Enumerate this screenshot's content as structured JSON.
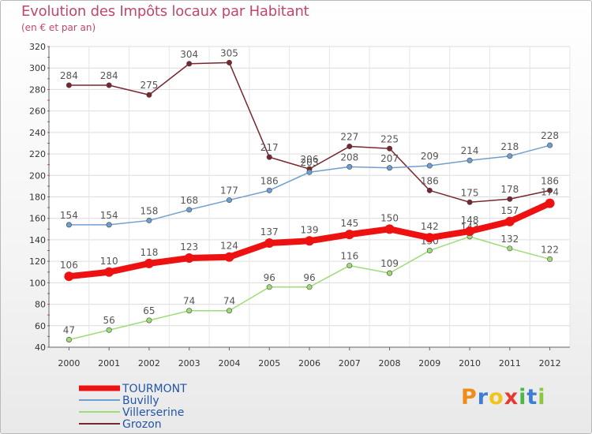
{
  "title": "Evolution des Impôts locaux par Habitant",
  "subtitle": "(en € et par an)",
  "brand": "Proxiti",
  "chart_data": {
    "type": "line",
    "title": "Evolution des Impôts locaux par Habitant",
    "subtitle": "(en € et par an)",
    "xlabel": "",
    "ylabel": "",
    "x": [
      "2000",
      "2001",
      "2002",
      "2003",
      "2004",
      "2005",
      "2006",
      "2007",
      "2008",
      "2009",
      "2010",
      "2011",
      "2012"
    ],
    "ylim": [
      40,
      320
    ],
    "yticks": [
      40,
      60,
      80,
      100,
      120,
      140,
      160,
      180,
      200,
      220,
      240,
      260,
      280,
      300,
      320
    ],
    "grid": true,
    "legend_position": "bottom-left",
    "series": [
      {
        "name": "Grozon",
        "color": "#7a2630",
        "values": [
          284,
          284,
          275,
          304,
          305,
          217,
          206,
          227,
          225,
          186,
          175,
          178,
          186
        ]
      },
      {
        "name": "Villerserine",
        "color": "#9fdc78",
        "values": [
          47,
          56,
          65,
          74,
          74,
          96,
          96,
          116,
          109,
          130,
          143,
          132,
          122
        ]
      },
      {
        "name": "Buvilly",
        "color": "#6f9fcf",
        "values": [
          154,
          154,
          158,
          168,
          177,
          186,
          203,
          208,
          207,
          209,
          214,
          218,
          228
        ]
      },
      {
        "name": "TOURMONT",
        "color": "#ee1111",
        "values": [
          106,
          110,
          118,
          123,
          124,
          137,
          139,
          145,
          150,
          142,
          148,
          157,
          174
        ]
      }
    ],
    "legend": [
      "TOURMONT",
      "Buvilly",
      "Villerserine",
      "Grozon"
    ]
  }
}
